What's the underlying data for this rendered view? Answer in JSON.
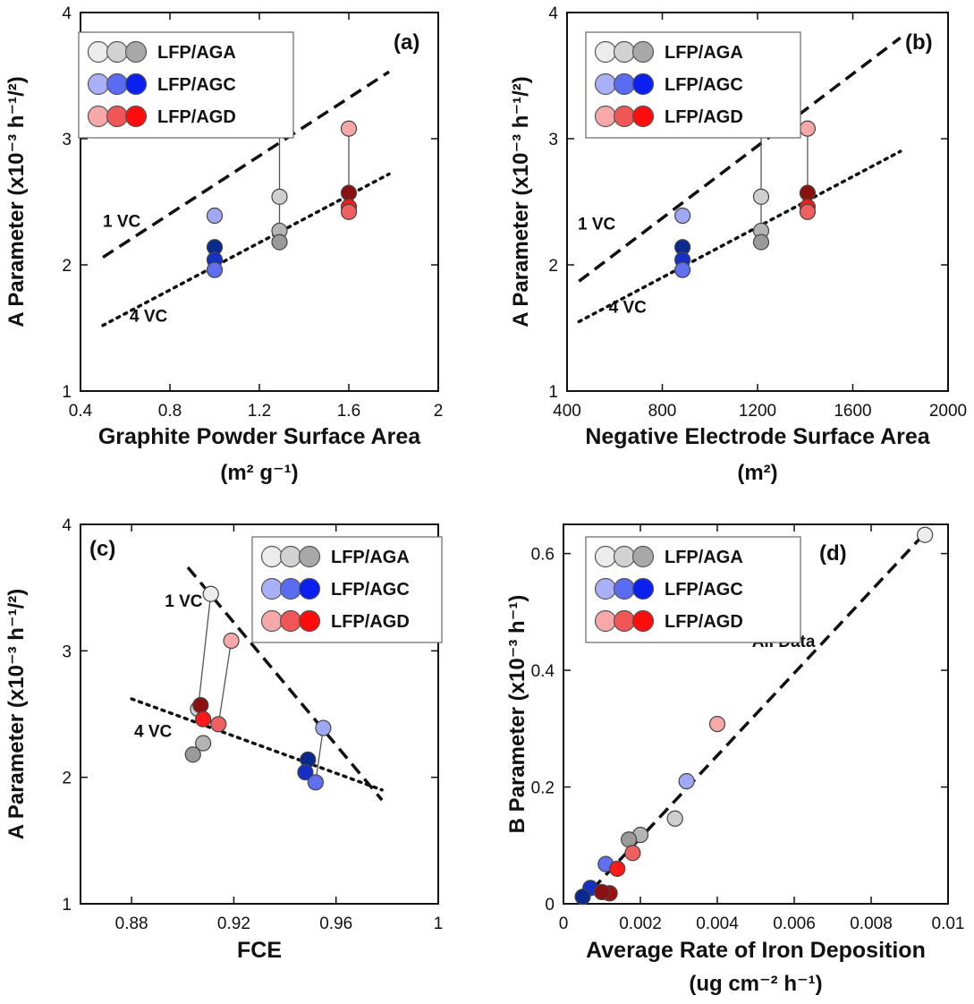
{
  "chart_data": [
    {
      "type": "scatter",
      "panel_label": "(a)",
      "xlabel": "Graphite Powder Surface Area",
      "xlabel_unit": "(m² g⁻¹)",
      "ylabel": "A Parameter (x10⁻³ h⁻¹/²)",
      "xlim": [
        0.4,
        2.0
      ],
      "ylim": [
        1,
        4
      ],
      "xticks": [
        0.4,
        0.8,
        1.2,
        1.6,
        2.0
      ],
      "xtick_labels": [
        "0.4",
        "0.8",
        "1.2",
        "1.6",
        "2"
      ],
      "yticks": [
        1,
        2,
        3,
        4
      ],
      "ytick_labels": [
        "1",
        "2",
        "3",
        "4"
      ],
      "legend": {
        "placement": "top-left",
        "entries": [
          "LFP/AGA",
          "LFP/AGC",
          "LFP/AGD"
        ]
      },
      "series": [
        {
          "name": "LFP/AGA",
          "points": [
            {
              "x": 1.29,
              "y": 3.45,
              "color": "#ececec"
            },
            {
              "x": 1.29,
              "y": 2.54,
              "color": "#cfcfcf"
            },
            {
              "x": 1.29,
              "y": 2.27,
              "color": "#b4b4b4"
            },
            {
              "x": 1.29,
              "y": 2.18,
              "color": "#9a9a9a"
            }
          ]
        },
        {
          "name": "LFP/AGC",
          "points": [
            {
              "x": 1.0,
              "y": 2.39,
              "color": "#9fa8f5"
            },
            {
              "x": 1.0,
              "y": 2.14,
              "color": "#0a2a90"
            },
            {
              "x": 1.0,
              "y": 2.04,
              "color": "#1630c6"
            },
            {
              "x": 1.0,
              "y": 1.96,
              "color": "#5f6ff0"
            }
          ]
        },
        {
          "name": "LFP/AGD",
          "points": [
            {
              "x": 1.6,
              "y": 3.08,
              "color": "#f7a8a8"
            },
            {
              "x": 1.6,
              "y": 2.57,
              "color": "#8b1010"
            },
            {
              "x": 1.6,
              "y": 2.46,
              "color": "#ff1a1a"
            },
            {
              "x": 1.6,
              "y": 2.42,
              "color": "#f06060"
            }
          ]
        }
      ],
      "connectors": [
        {
          "x": 1.29,
          "y_from": 2.18,
          "y_to": 3.45
        },
        {
          "x": 1.6,
          "y_from": 2.42,
          "y_to": 3.08
        }
      ],
      "trend_lines": [
        {
          "label": "1 VC",
          "style": "dashed",
          "x": [
            0.5,
            1.78
          ],
          "y": [
            2.06,
            3.53
          ]
        },
        {
          "label": "4 VC",
          "style": "dotted",
          "x": [
            0.5,
            1.78
          ],
          "y": [
            1.52,
            2.72
          ]
        }
      ],
      "annotations": [
        {
          "text": "1 VC",
          "x": 0.5,
          "y": 2.3
        },
        {
          "text": "4 VC",
          "x": 0.62,
          "y": 1.55
        }
      ]
    },
    {
      "type": "scatter",
      "panel_label": "(b)",
      "xlabel": "Negative Electrode Surface Area",
      "xlabel_unit": "(m²)",
      "ylabel": "A Parameter (x10⁻³ h⁻¹/²)",
      "xlim": [
        400,
        2000
      ],
      "ylim": [
        1,
        4
      ],
      "xticks": [
        400,
        800,
        1200,
        1600,
        2000
      ],
      "xtick_labels": [
        "400",
        "800",
        "1200",
        "1600",
        "2000"
      ],
      "yticks": [
        1,
        2,
        3,
        4
      ],
      "ytick_labels": [
        "1",
        "2",
        "3",
        "4"
      ],
      "legend": {
        "placement": "top-left",
        "entries": [
          "LFP/AGA",
          "LFP/AGC",
          "LFP/AGD"
        ]
      },
      "series": [
        {
          "name": "LFP/AGA",
          "points": [
            {
              "x": 1215,
              "y": 3.45,
              "color": "#ececec"
            },
            {
              "x": 1215,
              "y": 2.54,
              "color": "#cfcfcf"
            },
            {
              "x": 1215,
              "y": 2.27,
              "color": "#b4b4b4"
            },
            {
              "x": 1215,
              "y": 2.18,
              "color": "#9a9a9a"
            }
          ]
        },
        {
          "name": "LFP/AGC",
          "points": [
            {
              "x": 885,
              "y": 2.39,
              "color": "#9fa8f5"
            },
            {
              "x": 885,
              "y": 2.14,
              "color": "#0a2a90"
            },
            {
              "x": 885,
              "y": 2.04,
              "color": "#1630c6"
            },
            {
              "x": 885,
              "y": 1.96,
              "color": "#5f6ff0"
            }
          ]
        },
        {
          "name": "LFP/AGD",
          "points": [
            {
              "x": 1410,
              "y": 3.08,
              "color": "#f7a8a8"
            },
            {
              "x": 1410,
              "y": 2.57,
              "color": "#8b1010"
            },
            {
              "x": 1410,
              "y": 2.46,
              "color": "#ff1a1a"
            },
            {
              "x": 1410,
              "y": 2.42,
              "color": "#f06060"
            }
          ]
        }
      ],
      "connectors": [
        {
          "x": 1215,
          "y_from": 2.18,
          "y_to": 3.45
        },
        {
          "x": 1410,
          "y_from": 2.42,
          "y_to": 3.08
        }
      ],
      "trend_lines": [
        {
          "label": "1 VC",
          "style": "dashed",
          "x": [
            450,
            1800
          ],
          "y": [
            1.87,
            3.8
          ]
        },
        {
          "label": "4 VC",
          "style": "dotted",
          "x": [
            450,
            1800
          ],
          "y": [
            1.55,
            2.9
          ]
        }
      ],
      "annotations": [
        {
          "text": "1 VC",
          "x": 445,
          "y": 2.28
        },
        {
          "text": "4 VC",
          "x": 575,
          "y": 1.62
        }
      ]
    },
    {
      "type": "scatter",
      "panel_label": "(c)",
      "xlabel": "FCE",
      "xlabel_unit": "",
      "ylabel": "A Parameter (x10⁻³ h⁻¹/²)",
      "xlim": [
        0.86,
        1.0
      ],
      "ylim": [
        1,
        4
      ],
      "xticks": [
        0.88,
        0.92,
        0.96,
        1.0
      ],
      "xtick_labels": [
        "0.88",
        "0.92",
        "0.96",
        "1"
      ],
      "yticks": [
        1,
        2,
        3,
        4
      ],
      "ytick_labels": [
        "1",
        "2",
        "3",
        "4"
      ],
      "legend": {
        "placement": "top-right",
        "entries": [
          "LFP/AGA",
          "LFP/AGC",
          "LFP/AGD"
        ]
      },
      "series": [
        {
          "name": "LFP/AGA",
          "points": [
            {
              "x": 0.911,
              "y": 3.45,
              "color": "#ececec"
            },
            {
              "x": 0.906,
              "y": 2.54,
              "color": "#cfcfcf"
            },
            {
              "x": 0.908,
              "y": 2.27,
              "color": "#b4b4b4"
            },
            {
              "x": 0.904,
              "y": 2.18,
              "color": "#9a9a9a"
            }
          ]
        },
        {
          "name": "LFP/AGC",
          "points": [
            {
              "x": 0.955,
              "y": 2.39,
              "color": "#9fa8f5"
            },
            {
              "x": 0.949,
              "y": 2.14,
              "color": "#0a2a90"
            },
            {
              "x": 0.948,
              "y": 2.04,
              "color": "#1630c6"
            },
            {
              "x": 0.952,
              "y": 1.96,
              "color": "#5f6ff0"
            }
          ]
        },
        {
          "name": "LFP/AGD",
          "points": [
            {
              "x": 0.919,
              "y": 3.08,
              "color": "#f7a8a8"
            },
            {
              "x": 0.907,
              "y": 2.57,
              "color": "#8b1010"
            },
            {
              "x": 0.908,
              "y": 2.46,
              "color": "#ff1a1a"
            },
            {
              "x": 0.914,
              "y": 2.42,
              "color": "#f06060"
            }
          ]
        }
      ],
      "connectors": [
        {
          "x1": 0.911,
          "y1": 3.45,
          "x2": 0.906,
          "y2": 2.54
        },
        {
          "x1": 0.919,
          "y1": 3.08,
          "x2": 0.914,
          "y2": 2.42
        },
        {
          "x1": 0.955,
          "y1": 2.39,
          "x2": 0.952,
          "y2": 1.96
        }
      ],
      "trend_lines": [
        {
          "label": "1 VC",
          "style": "dashed",
          "x": [
            0.902,
            0.978
          ],
          "y": [
            3.66,
            1.82
          ]
        },
        {
          "label": "4 VC",
          "style": "dotted",
          "x": [
            0.88,
            0.978
          ],
          "y": [
            2.62,
            1.9
          ]
        }
      ],
      "annotations": [
        {
          "text": "1 VC",
          "x": 0.893,
          "y": 3.35
        },
        {
          "text": "4 VC",
          "x": 0.881,
          "y": 2.32
        }
      ]
    },
    {
      "type": "scatter",
      "panel_label": "(d)",
      "xlabel": "Average Rate of Iron Deposition",
      "xlabel_unit": "(ug cm⁻² h⁻¹)",
      "ylabel": "B Parameter (x10⁻³ h⁻¹)",
      "xlim": [
        0,
        0.01
      ],
      "ylim": [
        0,
        0.65
      ],
      "xticks": [
        0,
        0.002,
        0.004,
        0.006,
        0.008,
        0.01
      ],
      "xtick_labels": [
        "0",
        "0.002",
        "0.004",
        "0.006",
        "0.008",
        "0.01"
      ],
      "yticks": [
        0,
        0.2,
        0.4,
        0.6
      ],
      "ytick_labels": [
        "0",
        "0.2",
        "0.4",
        "0.6"
      ],
      "legend": {
        "placement": "top-left",
        "entries": [
          "LFP/AGA",
          "LFP/AGC",
          "LFP/AGD"
        ]
      },
      "series": [
        {
          "name": "LFP/AGA",
          "points": [
            {
              "x": 0.0094,
              "y": 0.632,
              "color": "#ececec"
            },
            {
              "x": 0.0029,
              "y": 0.146,
              "color": "#cfcfcf"
            },
            {
              "x": 0.002,
              "y": 0.118,
              "color": "#b4b4b4"
            },
            {
              "x": 0.0017,
              "y": 0.11,
              "color": "#9a9a9a"
            }
          ]
        },
        {
          "name": "LFP/AGC",
          "points": [
            {
              "x": 0.0032,
              "y": 0.21,
              "color": "#9fa8f5"
            },
            {
              "x": 0.0011,
              "y": 0.068,
              "color": "#5f6ff0"
            },
            {
              "x": 0.0007,
              "y": 0.027,
              "color": "#1630c6"
            },
            {
              "x": 0.0005,
              "y": 0.012,
              "color": "#0a2a90"
            }
          ]
        },
        {
          "name": "LFP/AGD",
          "points": [
            {
              "x": 0.004,
              "y": 0.308,
              "color": "#f7a8a8"
            },
            {
              "x": 0.0018,
              "y": 0.087,
              "color": "#f06060"
            },
            {
              "x": 0.0014,
              "y": 0.06,
              "color": "#ff1a1a"
            },
            {
              "x": 0.0012,
              "y": 0.018,
              "color": "#a01010"
            },
            {
              "x": 0.001,
              "y": 0.02,
              "color": "#8b1010"
            }
          ]
        }
      ],
      "connectors": [],
      "trend_lines": [
        {
          "label": "All Data",
          "style": "dashed",
          "x": [
            0.0004,
            0.0094
          ],
          "y": [
            0.0,
            0.635
          ]
        }
      ],
      "annotations": [
        {
          "text": "All Data",
          "x": 0.0049,
          "y": 0.44
        }
      ]
    }
  ]
}
